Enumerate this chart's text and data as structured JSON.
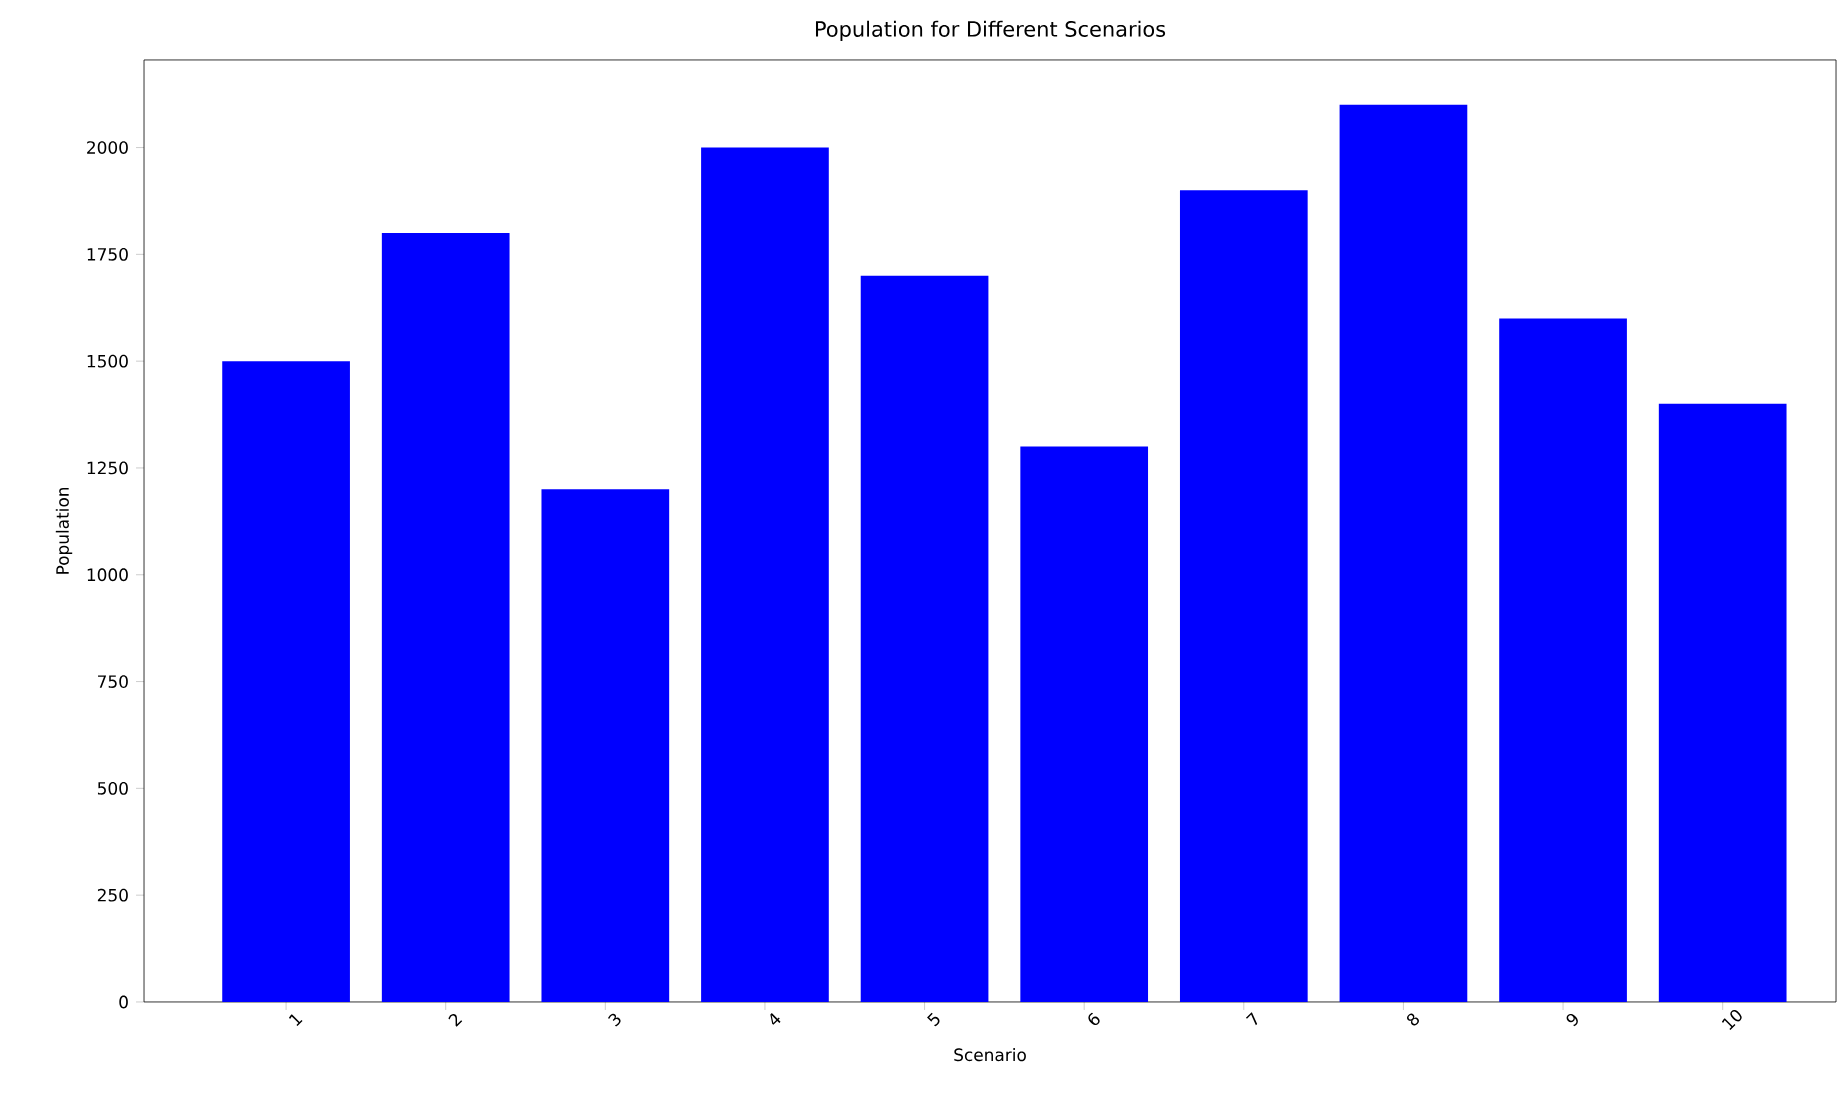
{
  "chart_data": {
    "type": "bar",
    "title": "Population for Different Scenarios",
    "xlabel": "Scenario",
    "ylabel": "Population",
    "categories": [
      "1",
      "2",
      "3",
      "4",
      "5",
      "6",
      "7",
      "8",
      "9",
      "10"
    ],
    "values": [
      1500,
      1800,
      1200,
      2000,
      1700,
      1300,
      1900,
      2100,
      1600,
      1400
    ],
    "color": "#0000ff",
    "ylim": [
      0,
      2205
    ],
    "yticks": [
      0,
      250,
      500,
      750,
      1000,
      1250,
      1500,
      1750,
      2000
    ],
    "grid": false
  }
}
